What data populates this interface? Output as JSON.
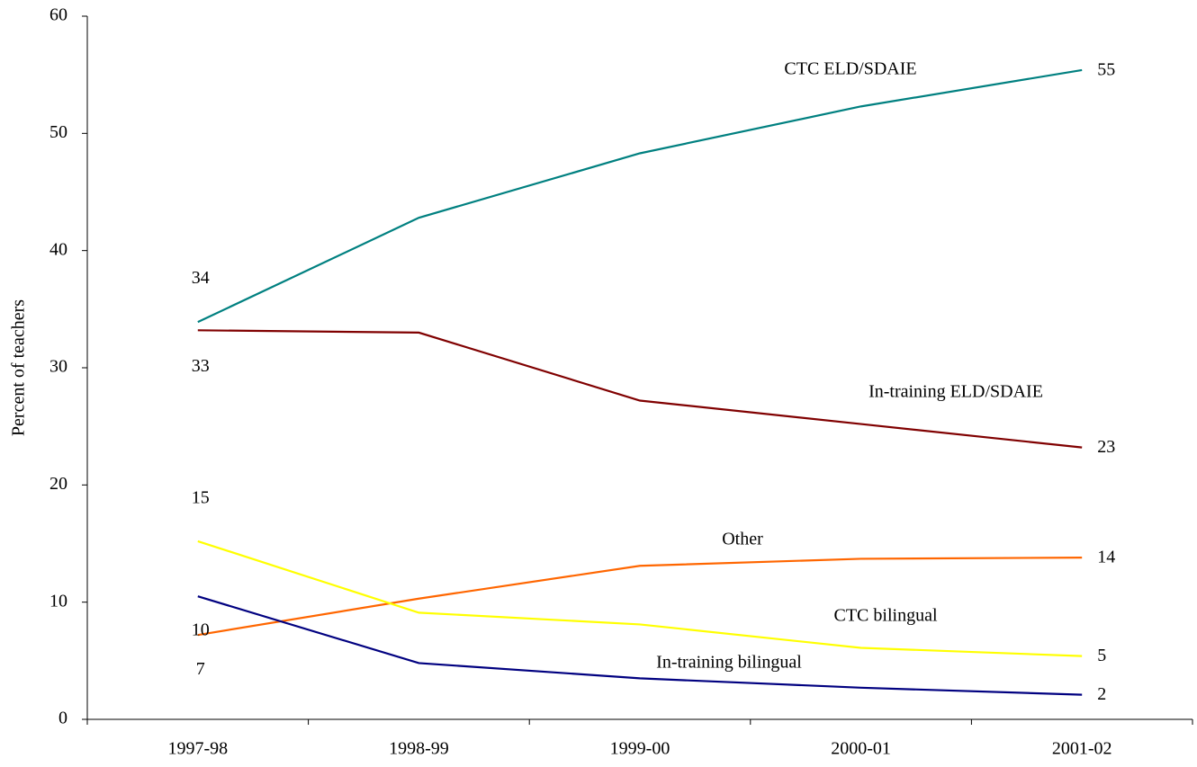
{
  "chart_data": {
    "type": "line",
    "y_label": "Percent of teachers",
    "categories": [
      "1997-98",
      "1998-99",
      "1999-00",
      "2000-01",
      "2001-02"
    ],
    "ylim": [
      0,
      60
    ],
    "yticks": [
      0,
      10,
      20,
      30,
      40,
      50,
      60
    ],
    "series": [
      {
        "name": "CTC ELD/SDAIE",
        "color": "#008080",
        "values": [
          33.9,
          42.8,
          48.3,
          52.3,
          55.4
        ],
        "value_labels": [
          "34",
          null,
          null,
          null,
          "55"
        ]
      },
      {
        "name": "In-training  ELD/SDAIE",
        "color": "#800000",
        "values": [
          33.2,
          33.0,
          27.2,
          25.2,
          23.2
        ],
        "value_labels": [
          "33",
          null,
          null,
          null,
          "23"
        ]
      },
      {
        "name": "Other",
        "color": "#ff6600",
        "values": [
          7.2,
          10.3,
          13.1,
          13.7,
          13.8
        ],
        "value_labels": [
          "7",
          null,
          null,
          null,
          "14"
        ]
      },
      {
        "name": "CTC bilingual",
        "color": "#ffff00",
        "values": [
          15.2,
          9.1,
          8.1,
          6.1,
          5.4
        ],
        "value_labels": [
          "15",
          null,
          null,
          null,
          "5"
        ]
      },
      {
        "name": "In-training bilingual",
        "color": "#000080",
        "values": [
          10.5,
          4.8,
          3.5,
          2.7,
          2.1
        ],
        "value_labels": [
          "10",
          null,
          null,
          null,
          "2"
        ]
      }
    ]
  }
}
